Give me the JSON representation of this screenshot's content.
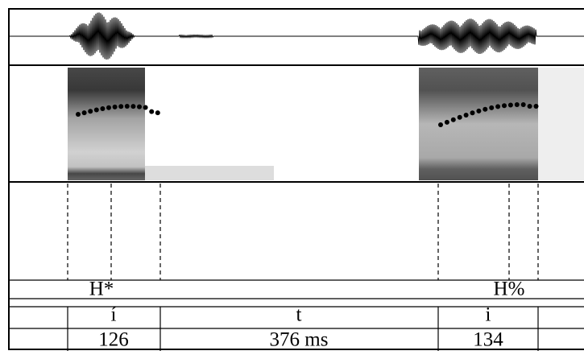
{
  "tiers": {
    "tones": [
      "H*",
      "H%"
    ],
    "segments": [
      "í",
      "t",
      "i"
    ],
    "durations": [
      "126",
      "376 ms",
      "134"
    ]
  }
}
